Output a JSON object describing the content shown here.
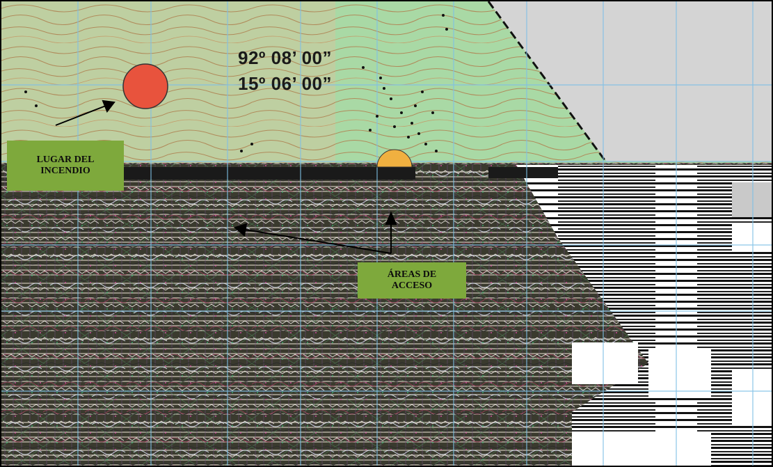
{
  "map": {
    "coordinates": {
      "longitude": "92º 08’ 00”",
      "latitude": "15º 06’ 00”"
    },
    "labels": {
      "fire_site_line1": "LUGAR DEL",
      "fire_site_line2": "INCENDIO",
      "access_line1": "ÁREAS DE",
      "access_line2": "ACCESO"
    },
    "markers": {
      "fire_site_icon": "red-circle-icon",
      "secondary_icon": "orange-circle-icon"
    },
    "colors": {
      "terrain_green": "#a9d9a5",
      "contour_brown": "#b08a5a",
      "grid_blue": "#7fc0e6",
      "out_of_area_gray": "#d4d4d4",
      "fire_marker_red": "#e8533d",
      "label_green": "#7ea93c",
      "arrow_black": "#000000"
    }
  }
}
